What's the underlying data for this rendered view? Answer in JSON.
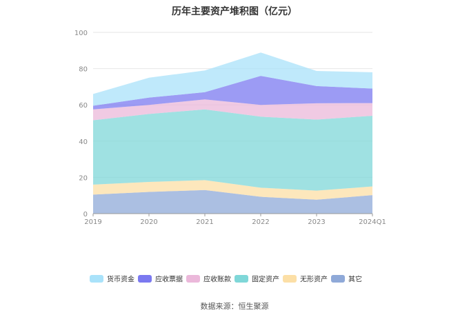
{
  "chart_data": {
    "type": "area",
    "stacked": true,
    "title": "历年主要资产堆积图（亿元）",
    "categories": [
      "2019",
      "2020",
      "2021",
      "2022",
      "2023",
      "2024Q1"
    ],
    "ylim": [
      0,
      100
    ],
    "yticks": [
      0,
      20,
      40,
      60,
      80,
      100
    ],
    "grid": true,
    "legend_position": "bottom",
    "series": [
      {
        "name": "其它",
        "color": "#8FA9D8",
        "values": [
          10.5,
          12.0,
          13.0,
          9.3,
          7.7,
          10.2
        ]
      },
      {
        "name": "无形资产",
        "color": "#FCDFA6",
        "values": [
          5.5,
          5.5,
          5.5,
          5.0,
          5.0,
          4.8
        ]
      },
      {
        "name": "固定资产",
        "color": "#7FD7D8",
        "values": [
          35.5,
          37.5,
          39.0,
          39.2,
          39.2,
          39.0
        ]
      },
      {
        "name": "应收账款",
        "color": "#EBB8DA",
        "values": [
          6.0,
          5.0,
          5.5,
          6.5,
          9.0,
          7.0
        ]
      },
      {
        "name": "应收票据",
        "color": "#7B79F0",
        "values": [
          2.0,
          4.0,
          4.0,
          16.0,
          9.5,
          8.0
        ]
      },
      {
        "name": "货币资金",
        "color": "#A9E2FA",
        "values": [
          6.5,
          11.0,
          12.0,
          12.9,
          8.3,
          9.0
        ]
      }
    ]
  },
  "legend_order": [
    "货币资金",
    "应收票据",
    "应收账款",
    "固定资产",
    "无形资产",
    "其它"
  ],
  "source_text": "数据来源：恒生聚源"
}
